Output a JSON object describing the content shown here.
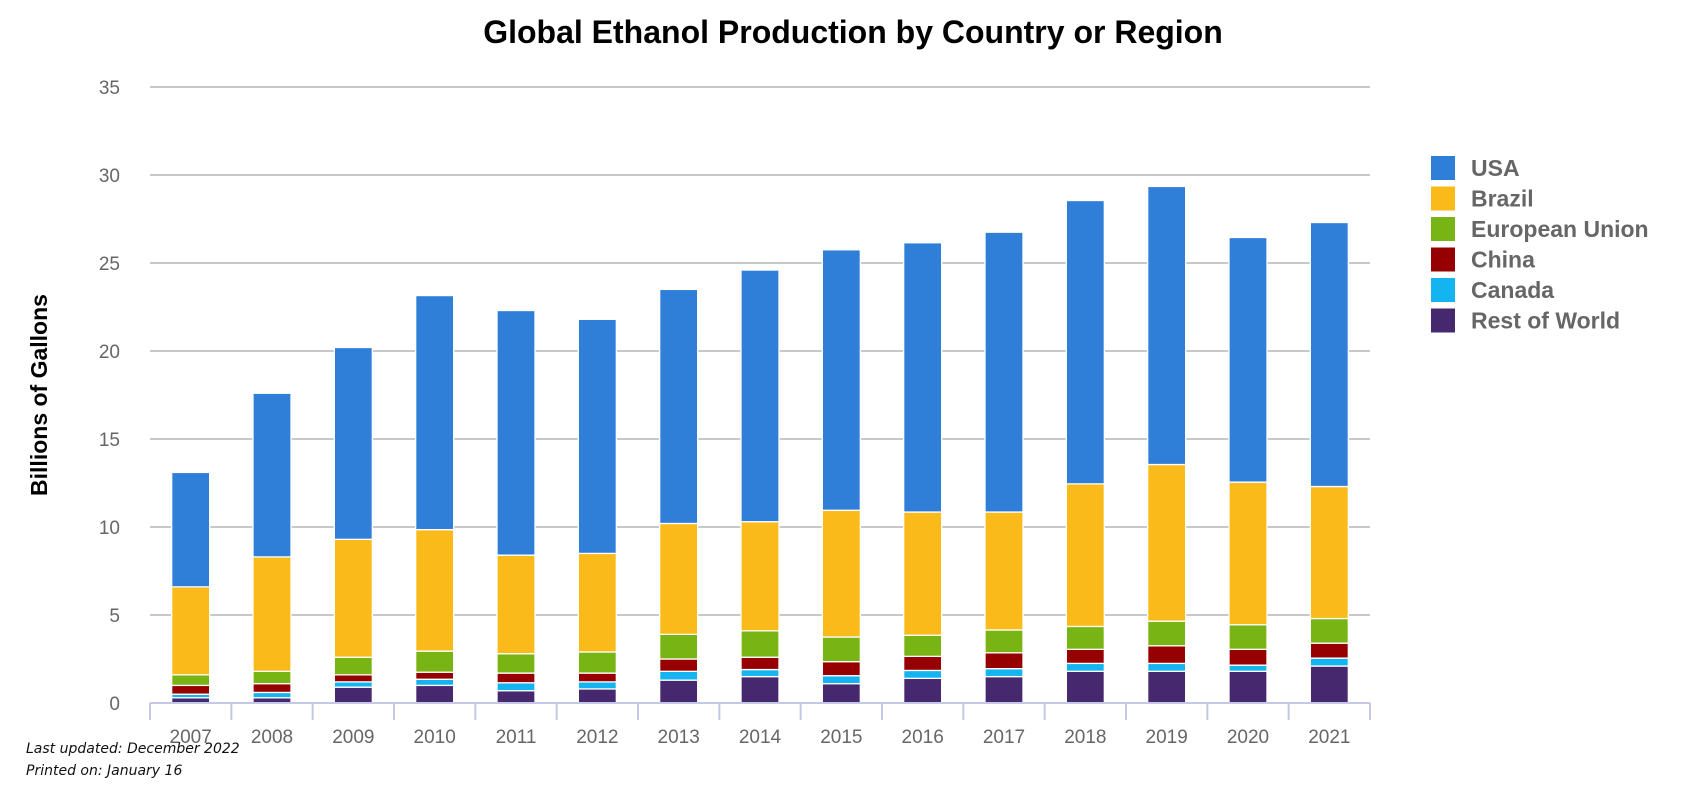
{
  "chart_data": {
    "type": "bar",
    "stacked": true,
    "title": "Global Ethanol Production by Country or Region",
    "xlabel": "",
    "ylabel": "Billions of Gallons",
    "ylim": [
      0,
      35
    ],
    "yticks": [
      0,
      5,
      10,
      15,
      20,
      25,
      30,
      35
    ],
    "grid": true,
    "legend_position": "right",
    "categories": [
      "2007",
      "2008",
      "2009",
      "2010",
      "2011",
      "2012",
      "2013",
      "2014",
      "2015",
      "2016",
      "2017",
      "2018",
      "2019",
      "2020",
      "2021"
    ],
    "series": [
      {
        "name": "Rest of World",
        "color": "#46286e",
        "values": [
          0.3,
          0.3,
          0.9,
          1.0,
          0.7,
          0.8,
          1.3,
          1.5,
          1.1,
          1.4,
          1.5,
          1.8,
          1.8,
          1.8,
          2.1
        ]
      },
      {
        "name": "Canada",
        "color": "#14b4f0",
        "values": [
          0.2,
          0.3,
          0.3,
          0.35,
          0.45,
          0.4,
          0.5,
          0.4,
          0.45,
          0.45,
          0.45,
          0.45,
          0.45,
          0.35,
          0.45
        ]
      },
      {
        "name": "China",
        "color": "#960000",
        "values": [
          0.5,
          0.5,
          0.4,
          0.4,
          0.55,
          0.5,
          0.7,
          0.7,
          0.8,
          0.8,
          0.9,
          0.8,
          1.0,
          0.9,
          0.85
        ]
      },
      {
        "name": "European Union",
        "color": "#78b414",
        "values": [
          0.6,
          0.7,
          1.0,
          1.2,
          1.1,
          1.2,
          1.4,
          1.5,
          1.4,
          1.2,
          1.3,
          1.3,
          1.4,
          1.4,
          1.4
        ]
      },
      {
        "name": "Brazil",
        "color": "#faba19",
        "values": [
          5.0,
          6.5,
          6.7,
          6.9,
          5.6,
          5.6,
          6.3,
          6.2,
          7.2,
          7.0,
          6.7,
          8.1,
          8.9,
          8.1,
          7.5
        ]
      },
      {
        "name": "USA",
        "color": "#2f7fd9",
        "values": [
          6.5,
          9.3,
          10.9,
          13.3,
          13.9,
          13.3,
          13.3,
          14.3,
          14.8,
          15.3,
          15.9,
          16.1,
          15.8,
          13.9,
          15.0
        ]
      }
    ],
    "legend_order": [
      "USA",
      "Brazil",
      "European Union",
      "China",
      "Canada",
      "Rest of World"
    ]
  },
  "footnotes": {
    "updated": "Last updated: December 2022",
    "printed": "Printed on: January 16"
  }
}
